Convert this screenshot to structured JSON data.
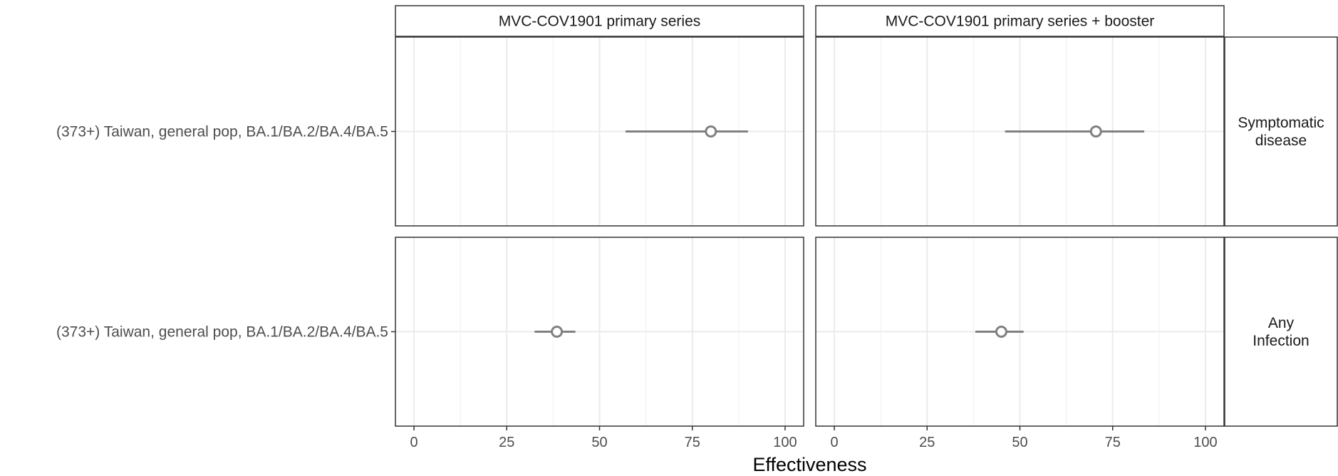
{
  "chart_data": {
    "type": "forest",
    "xlabel": "Effectiveness",
    "xlim": [
      -5,
      105
    ],
    "xticks": [
      0,
      25,
      50,
      75,
      100
    ],
    "x_tick_labels": [
      "0",
      "25",
      "50",
      "75",
      "100"
    ],
    "grid": true,
    "columns": [
      "MVC-COV1901 primary series",
      "MVC-COV1901 primary series + booster"
    ],
    "rows": [
      {
        "label_lines": [
          "Symptomatic",
          "disease"
        ],
        "y_label": "(373+) Taiwan, general pop, BA.1/BA.2/BA.4/BA.5"
      },
      {
        "label_lines": [
          "Any",
          "Infection"
        ],
        "y_label": "(373+) Taiwan, general pop, BA.1/BA.2/BA.4/BA.5"
      }
    ],
    "estimates": [
      [
        {
          "value": 80,
          "lower": 57,
          "upper": 90
        },
        {
          "value": 70.5,
          "lower": 46,
          "upper": 83.5
        }
      ],
      [
        {
          "value": 38.5,
          "lower": 32.5,
          "upper": 43.5
        },
        {
          "value": 45,
          "lower": 38,
          "upper": 51
        }
      ]
    ],
    "colors": {
      "point": "#808080",
      "interval": "#808080",
      "grid": "#ebebeb",
      "border": "#333333"
    }
  }
}
